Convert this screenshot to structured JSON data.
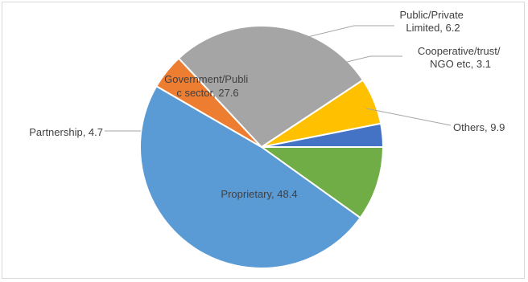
{
  "chart_data": {
    "type": "pie",
    "title": "",
    "slices": [
      {
        "label": "Others, 9.9",
        "category": "Others",
        "value": 9.9,
        "color": "#70ad47"
      },
      {
        "label": "Proprietary, 48.4",
        "category": "Proprietary",
        "value": 48.4,
        "color": "#5b9bd5"
      },
      {
        "label": "Partnership, 4.7",
        "category": "Partnership",
        "value": 4.7,
        "color": "#ed7d31"
      },
      {
        "label": "Government/Publi c sector, 27.6",
        "category": "Government/Public sector",
        "value": 27.6,
        "color": "#a5a5a5"
      },
      {
        "label": "Public/Private Limited, 6.2",
        "category": "Public/Private Limited",
        "value": 6.2,
        "color": "#ffc000"
      },
      {
        "label": "Cooperative/trust/ NGO etc, 3.1",
        "category": "Cooperative/trust/NGO etc",
        "value": 3.1,
        "color": "#4472c4"
      }
    ],
    "label_lines": {
      "others": [
        "Others, 9.9"
      ],
      "proprietary": [
        "Proprietary, 48.4"
      ],
      "partnership": [
        "Partnership, 4.7"
      ],
      "government": [
        "Government/Publi",
        "c sector, 27.6"
      ],
      "public_private": [
        "Public/Private",
        "Limited, 6.2"
      ],
      "cooperative": [
        "Cooperative/trust/",
        "NGO etc, 3.1"
      ]
    },
    "legend": "none",
    "start_angle": "3 o'clock, clockwise"
  }
}
